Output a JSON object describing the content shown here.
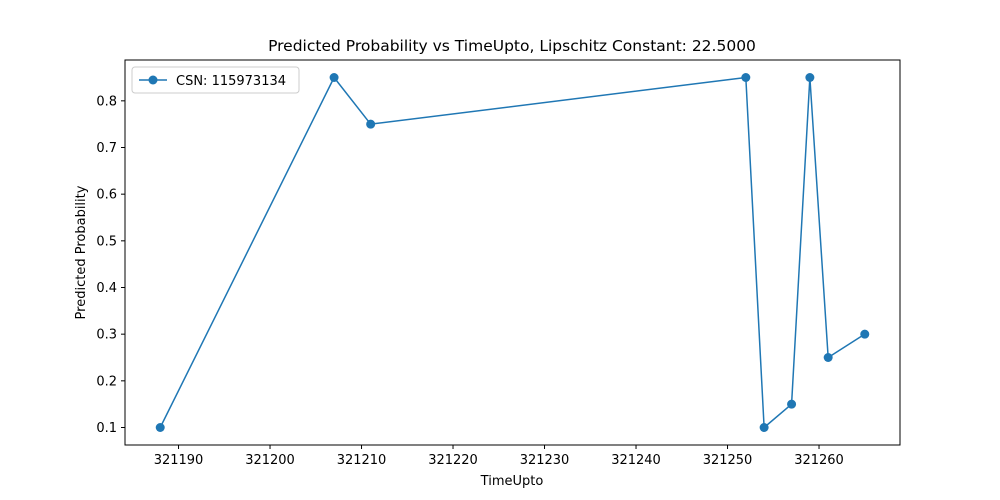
{
  "chart_data": {
    "type": "line",
    "title": "Predicted Probability vs TimeUpto, Lipschitz Constant: 22.5000",
    "xlabel": "TimeUpto",
    "ylabel": "Predicted Probability",
    "xlim": [
      321184.15,
      321268.85
    ],
    "ylim": [
      0.0625,
      0.8875
    ],
    "xticks": [
      321190,
      321200,
      321210,
      321220,
      321230,
      321240,
      321250,
      321260
    ],
    "xtick_labels": [
      "321190",
      "321200",
      "321210",
      "321220",
      "321230",
      "321240",
      "321250",
      "321260"
    ],
    "yticks": [
      0.1,
      0.2,
      0.3,
      0.4,
      0.5,
      0.6,
      0.7,
      0.8
    ],
    "ytick_labels": [
      "0.1",
      "0.2",
      "0.3",
      "0.4",
      "0.5",
      "0.6",
      "0.7",
      "0.8"
    ],
    "grid": false,
    "legend_position": "top-left",
    "series": [
      {
        "name": "CSN: 115973134",
        "color": "#1f77b4",
        "marker": "circle",
        "x": [
          321188,
          321207,
          321211,
          321252,
          321254,
          321257,
          321259,
          321261,
          321265
        ],
        "y": [
          0.1,
          0.85,
          0.75,
          0.85,
          0.1,
          0.15,
          0.85,
          0.25,
          0.3
        ]
      }
    ]
  }
}
